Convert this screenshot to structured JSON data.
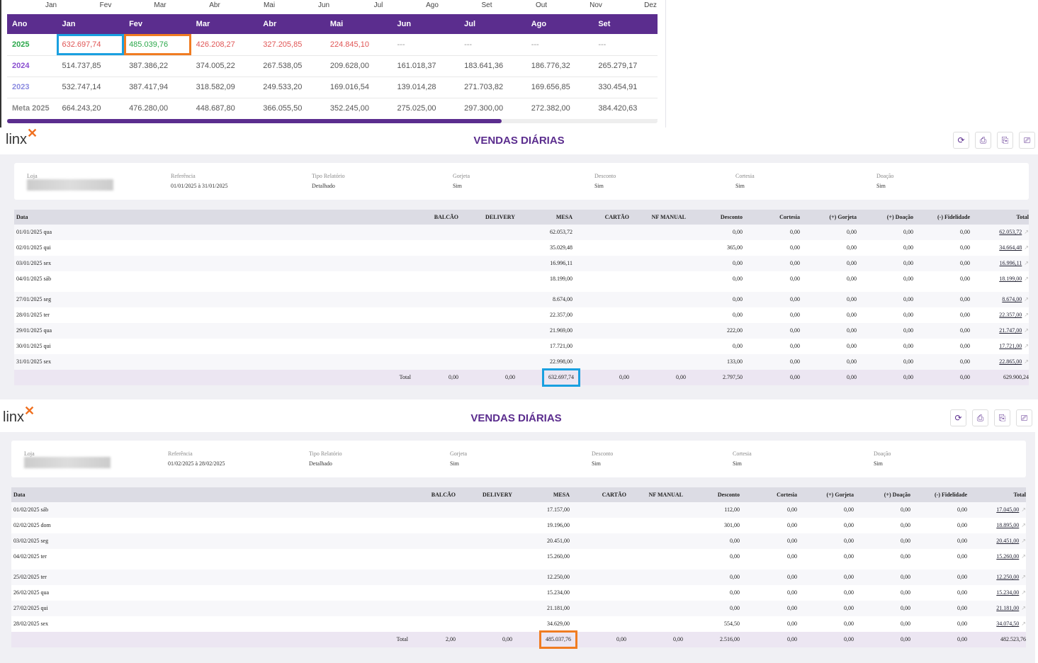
{
  "month_axis": [
    "Jan",
    "Fev",
    "Mar",
    "Abr",
    "Mai",
    "Jun",
    "Jul",
    "Ago",
    "Set",
    "Out",
    "Nov",
    "Dez"
  ],
  "yearly_table": {
    "headers": [
      "Ano",
      "Jan",
      "Fev",
      "Mar",
      "Abr",
      "Mai",
      "Jun",
      "Jul",
      "Ago",
      "Set"
    ],
    "rows": [
      {
        "label": "2025",
        "label_color": "#2aa84a",
        "values": [
          "632.697,74",
          "485.039,76",
          "426.208,27",
          "327.205,85",
          "224.845,10",
          "---",
          "---",
          "---",
          "---"
        ],
        "value_colors": [
          "#e05555",
          "#2aa84a",
          "#e05555",
          "#e05555",
          "#e05555",
          "#999",
          "#999",
          "#999",
          "#999"
        ]
      },
      {
        "label": "2024",
        "label_color": "#8a4fd0",
        "values": [
          "514.737,85",
          "387.386,22",
          "374.005,22",
          "267.538,05",
          "209.628,00",
          "161.018,37",
          "183.641,36",
          "186.776,32",
          "265.279,17"
        ]
      },
      {
        "label": "2023",
        "label_color": "#8a8ae0",
        "values": [
          "532.747,14",
          "387.417,94",
          "318.582,09",
          "249.533,20",
          "169.016,54",
          "139.014,28",
          "271.703,82",
          "169.656,85",
          "330.454,91"
        ]
      },
      {
        "label": "Meta 2025",
        "label_color": "#888",
        "values": [
          "664.243,20",
          "476.280,00",
          "448.687,80",
          "366.055,50",
          "352.245,00",
          "275.025,00",
          "297.300,00",
          "272.382,00",
          "384.420,63"
        ]
      }
    ],
    "scroll_progress": 0.76
  },
  "reports": [
    {
      "logo": "Linx",
      "title": "VENDAS DIÁRIAS",
      "info": [
        {
          "label": "Loja",
          "value": ""
        },
        {
          "label": "Referência",
          "value": "01/01/2025 à 31/01/2025"
        },
        {
          "label": "Tipo Relatório",
          "value": "Detalhado"
        },
        {
          "label": "Gorjeta",
          "value": "Sim"
        },
        {
          "label": "Desconto",
          "value": "Sim"
        },
        {
          "label": "Cortesia",
          "value": "Sim"
        },
        {
          "label": "Doação",
          "value": "Sim"
        }
      ],
      "columns": [
        "Data",
        "BALCÃO",
        "DELIVERY",
        "MESA",
        "CARTÃO",
        "NF MANUAL",
        "Desconto",
        "Cortesia",
        "(+) Gorjeta",
        "(+) Doação",
        "(-) Fidelidade",
        "Total"
      ],
      "rows": [
        [
          "01/01/2025 qua",
          "",
          "",
          "62.053,72",
          "",
          "",
          "0,00",
          "0,00",
          "0,00",
          "0,00",
          "0,00",
          "62.053,72"
        ],
        [
          "02/01/2025 qui",
          "",
          "",
          "35.029,48",
          "",
          "",
          "365,00",
          "0,00",
          "0,00",
          "0,00",
          "0,00",
          "34.664,48"
        ],
        [
          "03/01/2025 sex",
          "",
          "",
          "16.996,11",
          "",
          "",
          "0,00",
          "0,00",
          "0,00",
          "0,00",
          "0,00",
          "16.996,11"
        ],
        [
          "04/01/2025 sáb",
          "",
          "",
          "18.199,00",
          "",
          "",
          "0,00",
          "0,00",
          "0,00",
          "0,00",
          "0,00",
          "18.199,00"
        ],
        [
          "27/01/2025 seg",
          "",
          "",
          "8.674,00",
          "",
          "",
          "0,00",
          "0,00",
          "0,00",
          "0,00",
          "0,00",
          "8.674,00"
        ],
        [
          "28/01/2025 ter",
          "",
          "",
          "22.357,00",
          "",
          "",
          "0,00",
          "0,00",
          "0,00",
          "0,00",
          "0,00",
          "22.357,00"
        ],
        [
          "29/01/2025 qua",
          "",
          "",
          "21.969,00",
          "",
          "",
          "222,00",
          "0,00",
          "0,00",
          "0,00",
          "0,00",
          "21.747,00"
        ],
        [
          "30/01/2025 qui",
          "",
          "",
          "17.721,00",
          "",
          "",
          "0,00",
          "0,00",
          "0,00",
          "0,00",
          "0,00",
          "17.721,00"
        ],
        [
          "31/01/2025 sex",
          "",
          "",
          "22.998,00",
          "",
          "",
          "133,00",
          "0,00",
          "0,00",
          "0,00",
          "0,00",
          "22.865,00"
        ]
      ],
      "total": [
        "Total",
        "0,00",
        "0,00",
        "632.697,74",
        "0,00",
        "0,00",
        "2.797,50",
        "0,00",
        "0,00",
        "0,00",
        "0,00",
        "629.900,24"
      ],
      "highlight_color": "#1aa0e0"
    },
    {
      "logo": "Linx",
      "title": "VENDAS DIÁRIAS",
      "info": [
        {
          "label": "Loja",
          "value": ""
        },
        {
          "label": "Referência",
          "value": "01/02/2025 à 28/02/2025"
        },
        {
          "label": "Tipo Relatório",
          "value": "Detalhado"
        },
        {
          "label": "Gorjeta",
          "value": "Sim"
        },
        {
          "label": "Desconto",
          "value": "Sim"
        },
        {
          "label": "Cortesia",
          "value": "Sim"
        },
        {
          "label": "Doação",
          "value": "Sim"
        }
      ],
      "columns": [
        "Data",
        "BALCÃO",
        "DELIVERY",
        "MESA",
        "CARTÃO",
        "NF MANUAL",
        "Desconto",
        "Cortesia",
        "(+) Gorjeta",
        "(+) Doação",
        "(-) Fidelidade",
        "Total"
      ],
      "rows": [
        [
          "01/02/2025 sáb",
          "",
          "",
          "17.157,00",
          "",
          "",
          "112,00",
          "0,00",
          "0,00",
          "0,00",
          "0,00",
          "17.045,00"
        ],
        [
          "02/02/2025 dom",
          "",
          "",
          "19.196,00",
          "",
          "",
          "301,00",
          "0,00",
          "0,00",
          "0,00",
          "0,00",
          "18.895,00"
        ],
        [
          "03/02/2025 seg",
          "",
          "",
          "20.451,00",
          "",
          "",
          "0,00",
          "0,00",
          "0,00",
          "0,00",
          "0,00",
          "20.451,00"
        ],
        [
          "04/02/2025 ter",
          "",
          "",
          "15.260,00",
          "",
          "",
          "0,00",
          "0,00",
          "0,00",
          "0,00",
          "0,00",
          "15.260,00"
        ],
        [
          "25/02/2025 ter",
          "",
          "",
          "12.250,00",
          "",
          "",
          "0,00",
          "0,00",
          "0,00",
          "0,00",
          "0,00",
          "12.250,00"
        ],
        [
          "26/02/2025 qua",
          "",
          "",
          "15.234,00",
          "",
          "",
          "0,00",
          "0,00",
          "0,00",
          "0,00",
          "0,00",
          "15.234,00"
        ],
        [
          "27/02/2025 qui",
          "",
          "",
          "21.181,00",
          "",
          "",
          "0,00",
          "0,00",
          "0,00",
          "0,00",
          "0,00",
          "21.181,00"
        ],
        [
          "28/02/2025 sex",
          "",
          "",
          "34.629,00",
          "",
          "",
          "554,50",
          "0,00",
          "0,00",
          "0,00",
          "0,00",
          "34.074,50"
        ]
      ],
      "total": [
        "Total",
        "2,00",
        "0,00",
        "485.037,76",
        "0,00",
        "0,00",
        "2.516,00",
        "0,00",
        "0,00",
        "0,00",
        "0,00",
        "482.523,76"
      ],
      "highlight_color": "#f07c22"
    }
  ],
  "toolbar_icons": [
    "refresh-icon",
    "export-pdf-icon",
    "export-excel-icon",
    "print-icon"
  ]
}
